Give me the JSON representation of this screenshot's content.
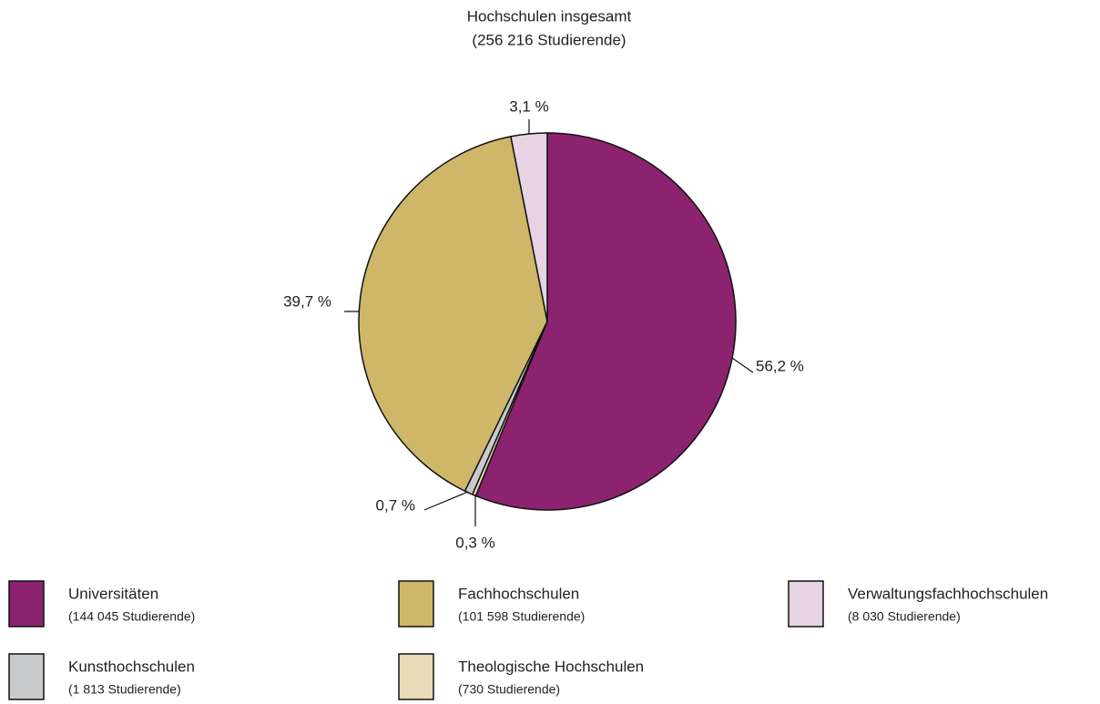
{
  "chart_data": {
    "type": "pie",
    "title": "Hochschulen insgesamt",
    "subtitle": "(256 216 Studierende)",
    "categories": [
      "Universitäten",
      "Theologische Hochschulen",
      "Kunsthochschulen",
      "Fachhochschulen",
      "Verwaltungsfachhochschulen"
    ],
    "category_notes": [
      "(144 045 Studierende)",
      "(730 Studierende)",
      "(1 813 Studierende)",
      "(101 598 Studierende)",
      "(8 030 Studierende)"
    ],
    "values": [
      56.2,
      0.3,
      0.7,
      39.7,
      3.1
    ],
    "value_labels": [
      "56,2 %",
      "0,3 %",
      "0,7 %",
      "39,7 %",
      "3,1 %"
    ],
    "colors": [
      "#8c2370",
      "#e8dbb8",
      "#c8c9cb",
      "#cfb76a",
      "#e6d3e3"
    ]
  }
}
